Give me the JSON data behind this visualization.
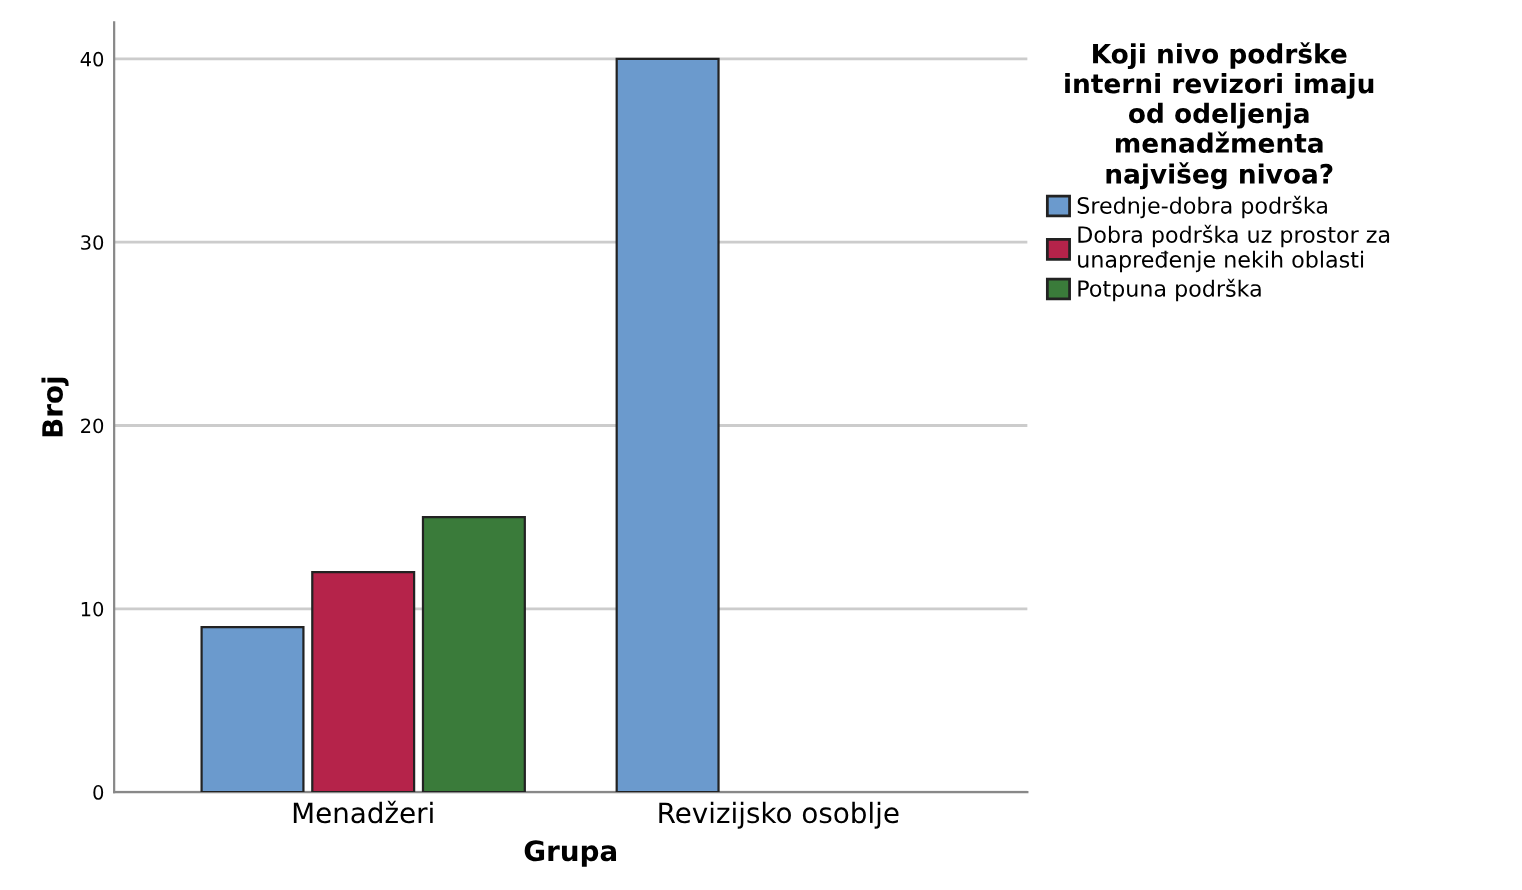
{
  "chart_data": {
    "type": "bar",
    "xlabel": "Grupa",
    "ylabel": "Broj",
    "legend_title": "Koji nivo podrške\ninterni revizori imaju\nod odeljenja\nmenadžmenta\nnajvišeg nivoa?",
    "categories": [
      "Menadžeri",
      "Revizijsko osoblje"
    ],
    "series": [
      {
        "name": "Srednje-dobra podrška",
        "color": "#6b9acd",
        "values": [
          9,
          40
        ]
      },
      {
        "name": "Dobra podrška uz prostor za\nunapređenje nekih oblasti",
        "color": "#b5234a",
        "values": [
          12,
          null
        ]
      },
      {
        "name": "Potpuna podrška",
        "color": "#3a7b3a",
        "values": [
          15,
          null
        ]
      }
    ],
    "ylim": [
      0,
      42
    ],
    "yticks": [
      0,
      10,
      20,
      30,
      40
    ],
    "grid": "y",
    "legend": "right"
  }
}
